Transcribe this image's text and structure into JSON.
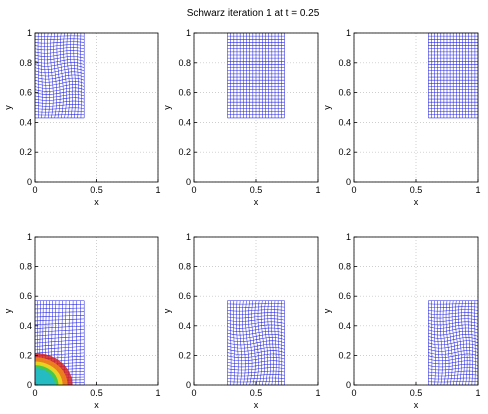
{
  "figure": {
    "title": "Schwarz iteration 1 at t = 0.25"
  },
  "colors": {
    "mesh": "#2a2ae0",
    "grid": "#bdbdbd",
    "axis": "#000000"
  },
  "chart_data": [
    {
      "type": "mesh",
      "xlabel": "x",
      "ylabel": "y",
      "xlim": [
        0,
        1
      ],
      "ylim": [
        0,
        1
      ],
      "xticks": [
        "0",
        "0.5",
        "1"
      ],
      "yticks": [
        "0",
        "0.2",
        "0.4",
        "0.6",
        "0.8",
        "1"
      ],
      "grid": true,
      "mesh_extent": {
        "x": [
          0,
          0.4
        ],
        "y": [
          0.43,
          1
        ]
      },
      "mesh_style": "distorted"
    },
    {
      "type": "mesh",
      "xlabel": "x",
      "ylabel": "y",
      "xlim": [
        0,
        1
      ],
      "ylim": [
        0,
        1
      ],
      "xticks": [
        "0",
        "0.5",
        "1"
      ],
      "yticks": [
        "0",
        "0.2",
        "0.4",
        "0.6",
        "0.8",
        "1"
      ],
      "grid": true,
      "mesh_extent": {
        "x": [
          0.27,
          0.73
        ],
        "y": [
          0.43,
          1
        ]
      },
      "mesh_style": "uniform"
    },
    {
      "type": "mesh",
      "xlabel": "x",
      "ylabel": "y",
      "xlim": [
        0,
        1
      ],
      "ylim": [
        0,
        1
      ],
      "xticks": [
        "0",
        "0.5",
        "1"
      ],
      "yticks": [
        "0",
        "0.2",
        "0.4",
        "0.6",
        "0.8",
        "1"
      ],
      "grid": true,
      "mesh_extent": {
        "x": [
          0.6,
          1.0
        ],
        "y": [
          0.43,
          1
        ]
      },
      "mesh_style": "uniform"
    },
    {
      "type": "mesh",
      "xlabel": "x",
      "ylabel": "y",
      "xlim": [
        0,
        1
      ],
      "ylim": [
        0,
        1
      ],
      "xticks": [
        "0",
        "0.5",
        "1"
      ],
      "yticks": [
        "0",
        "0.2",
        "0.4",
        "0.6",
        "0.8",
        "1"
      ],
      "grid": true,
      "mesh_extent": {
        "x": [
          0,
          0.4
        ],
        "y": [
          0,
          0.57
        ]
      },
      "mesh_style": "corner-refined",
      "colored_front": true
    },
    {
      "type": "mesh",
      "xlabel": "x",
      "ylabel": "y",
      "xlim": [
        0,
        1
      ],
      "ylim": [
        0,
        1
      ],
      "xticks": [
        "0",
        "0.5",
        "1"
      ],
      "yticks": [
        "0",
        "0.2",
        "0.4",
        "0.6",
        "0.8",
        "1"
      ],
      "grid": true,
      "mesh_extent": {
        "x": [
          0.27,
          0.73
        ],
        "y": [
          0,
          0.57
        ]
      },
      "mesh_style": "distorted"
    },
    {
      "type": "mesh",
      "xlabel": "x",
      "ylabel": "y",
      "xlim": [
        0,
        1
      ],
      "ylim": [
        0,
        1
      ],
      "xticks": [
        "0",
        "0.5",
        "1"
      ],
      "yticks": [
        "0",
        "0.2",
        "0.4",
        "0.6",
        "0.8",
        "1"
      ],
      "grid": true,
      "mesh_extent": {
        "x": [
          0.6,
          1.0
        ],
        "y": [
          0,
          0.57
        ]
      },
      "mesh_style": "distorted"
    }
  ]
}
